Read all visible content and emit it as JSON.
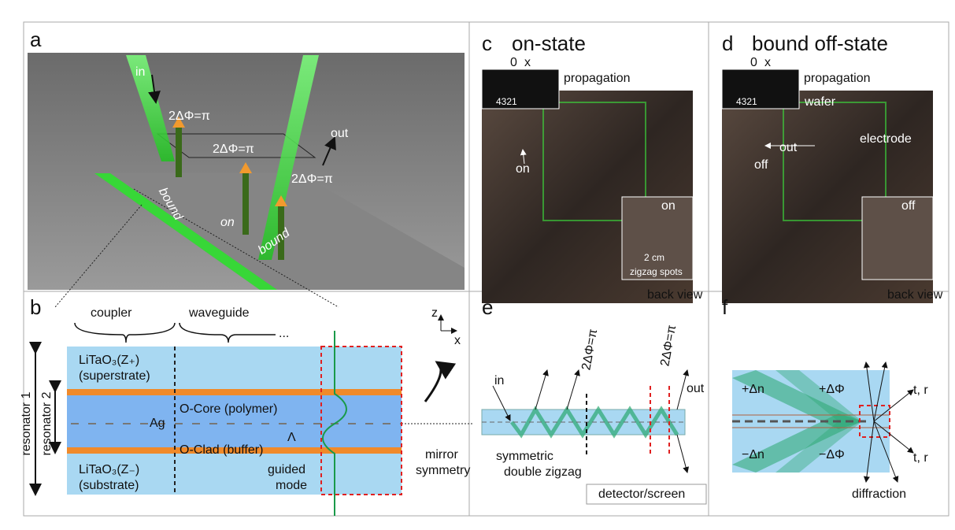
{
  "panels": {
    "a": {
      "label": "a",
      "in": "in",
      "out": "out",
      "phase": [
        "2ΔΦ=π",
        "2ΔΦ=π",
        "2ΔΦ=π"
      ],
      "bound": [
        "bound",
        "bound"
      ],
      "on": "on"
    },
    "b": {
      "label": "b",
      "coupler": "coupler",
      "waveguide": "waveguide",
      "ellipsis": "...",
      "axis_z": "z",
      "axis_x": "x",
      "superstrate_material": "LiTaO₃(Z₊)",
      "superstrate": "(superstrate)",
      "resonator_1": "resonator 1",
      "resonator_2": "resonator 2",
      "ag": "Ag",
      "core": "O-Core (polymer)",
      "period": "Λ",
      "clad": "O-Clad (buffer)",
      "substrate_material": "LiTaO₃(Z₋)",
      "substrate": "(substrate)",
      "guided": "guided",
      "mode": "mode",
      "mirror": "mirror",
      "symmetry": "symmetry"
    },
    "c": {
      "label": "c",
      "title": "on-state",
      "zero": "0",
      "x": "x",
      "propagation": "propagation",
      "orders": "4321",
      "on_spot": "on",
      "on_back": "on",
      "scale": "2 cm",
      "zigzag": "zigzag spots",
      "back_view": "back view"
    },
    "d": {
      "label": "d",
      "title": "bound off-state",
      "zero": "0",
      "x": "x",
      "propagation": "propagation",
      "orders": "4321",
      "wafer": "wafer",
      "out": "out",
      "electrode": "electrode",
      "off_spot": "off",
      "off_back": "off",
      "back_view": "back view"
    },
    "e": {
      "label": "e",
      "in": "in",
      "phase": [
        "2ΔΦ=π",
        "2ΔΦ=π"
      ],
      "out": "out",
      "symmetric": "symmetric",
      "double_zigzag": "double zigzag",
      "detector": "detector/screen"
    },
    "f": {
      "label": "f",
      "plus_dn": "+Δn",
      "plus_dphi": "+ΔΦ",
      "minus_dn": "−Δn",
      "minus_dphi": "−ΔΦ",
      "tr": [
        "t, r",
        "t, r"
      ],
      "diffraction": "diffraction"
    }
  }
}
